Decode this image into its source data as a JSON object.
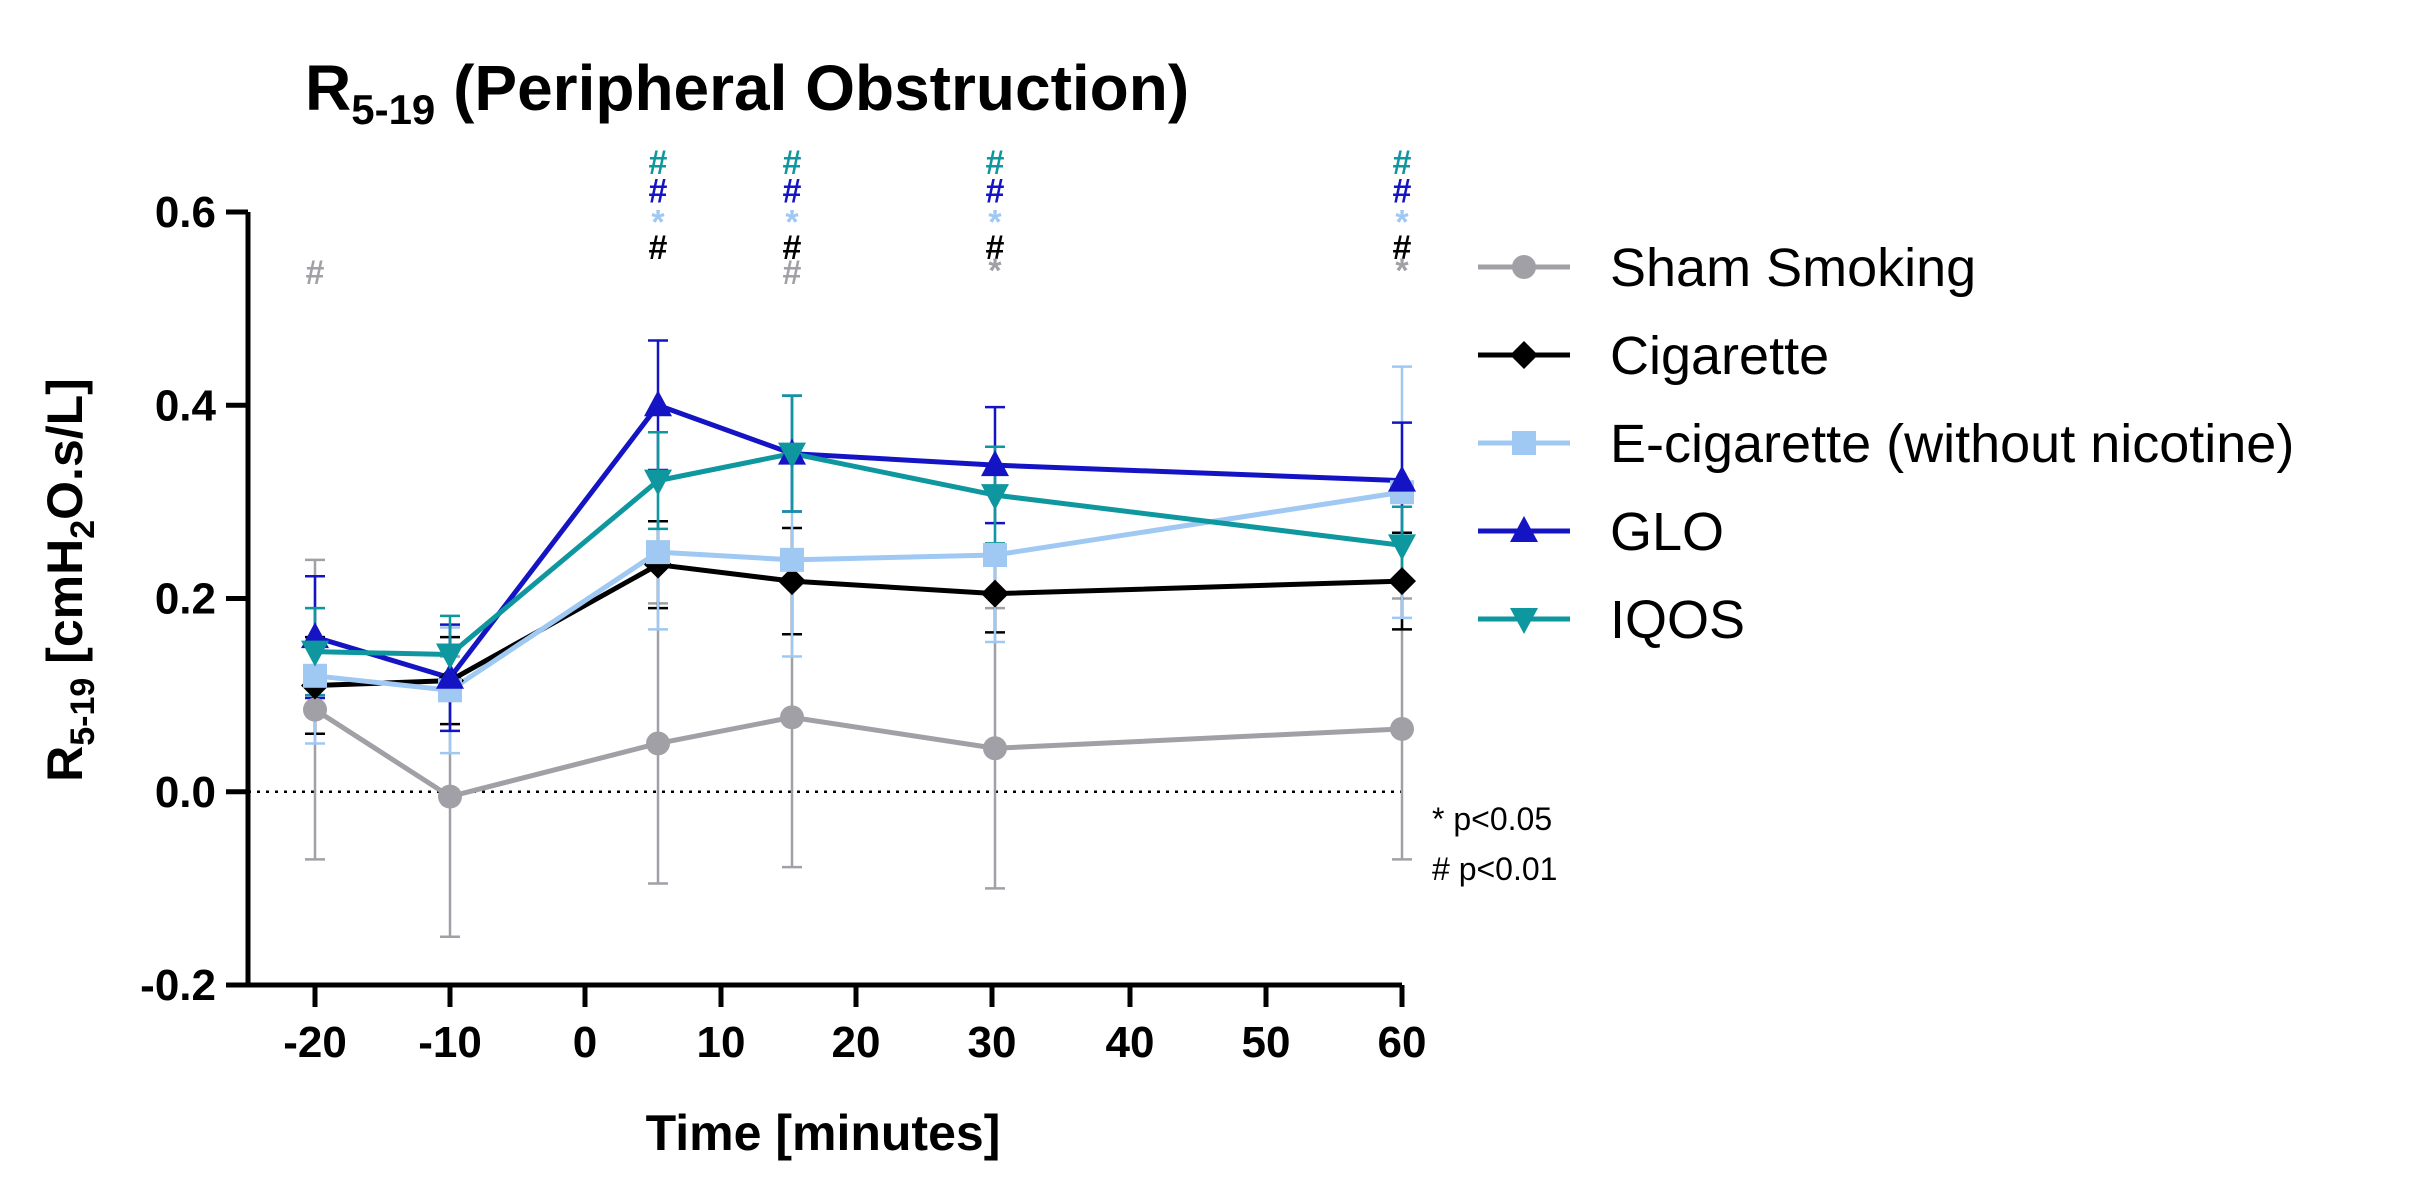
{
  "chart_data": {
    "type": "line",
    "title": "R5-19 (Peripheral Obstruction)",
    "title_main": "R",
    "title_sub": "5-19",
    "title_rest": " (Peripheral Obstruction)",
    "xlabel": "Time [minutes]",
    "ylabel": "R5-19 [cmH2O.s/L]",
    "ylabel_r": "R",
    "ylabel_sub": "5-19",
    "ylabel_unit_a": " [cmH",
    "ylabel_unit_sub": "2",
    "ylabel_unit_b": "O.s/L]",
    "x_ticks": [
      "-20",
      "-10",
      "0",
      "10",
      "20",
      "30",
      "40",
      "50",
      "60"
    ],
    "x": [
      -20,
      -10,
      5,
      15,
      30,
      60
    ],
    "y_ticks": [
      "-0.2",
      "0.0",
      "0.2",
      "0.4",
      "0.6"
    ],
    "ylim": [
      -0.2,
      0.6
    ],
    "zero_line": "dotted",
    "legend_position": "right",
    "series": [
      {
        "name": "Sham Smoking",
        "color": "#a0a0a6",
        "marker": "circle",
        "values": [
          0.085,
          -0.005,
          0.05,
          0.077,
          0.045,
          0.065
        ],
        "errors": [
          0.155,
          0.145,
          0.145,
          0.155,
          0.145,
          0.135
        ]
      },
      {
        "name": "Cigarette",
        "color": "#000000",
        "marker": "diamond",
        "values": [
          0.11,
          0.115,
          0.235,
          0.218,
          0.205,
          0.218
        ],
        "errors": [
          0.05,
          0.045,
          0.045,
          0.055,
          0.04,
          0.05
        ]
      },
      {
        "name": "E-cigarette (without nicotine)",
        "color": "#9fc8f2",
        "marker": "square",
        "values": [
          0.12,
          0.105,
          0.248,
          0.24,
          0.245,
          0.31
        ],
        "errors": [
          0.07,
          0.065,
          0.08,
          0.1,
          0.09,
          0.13
        ]
      },
      {
        "name": "GLO",
        "color": "#1414c4",
        "marker": "triangle-up",
        "values": [
          0.16,
          0.118,
          0.4,
          0.35,
          0.338,
          0.322
        ],
        "errors": [
          0.063,
          0.055,
          0.067,
          0.06,
          0.06,
          0.06
        ]
      },
      {
        "name": "IQOS",
        "color": "#0e979e",
        "marker": "triangle-down",
        "values": [
          0.145,
          0.142,
          0.322,
          0.35,
          0.307,
          0.255
        ],
        "errors": [
          0.045,
          0.04,
          0.05,
          0.06,
          0.05,
          0.04
        ]
      }
    ],
    "significance": [
      {
        "x": -20,
        "marks": [
          {
            "text": "#",
            "color": "#a0a0a6",
            "y": 0.538
          }
        ]
      },
      {
        "x": 5,
        "marks": [
          {
            "text": "#",
            "color": "#0e979e",
            "y": 0.652
          },
          {
            "text": "#",
            "color": "#1414c4",
            "y": 0.622
          },
          {
            "text": "*",
            "color": "#9fc8f2",
            "y": 0.59
          },
          {
            "text": "#",
            "color": "#000000",
            "y": 0.564
          }
        ]
      },
      {
        "x": 15,
        "marks": [
          {
            "text": "#",
            "color": "#0e979e",
            "y": 0.652
          },
          {
            "text": "#",
            "color": "#1414c4",
            "y": 0.622
          },
          {
            "text": "*",
            "color": "#9fc8f2",
            "y": 0.59
          },
          {
            "text": "#",
            "color": "#000000",
            "y": 0.564
          },
          {
            "text": "#",
            "color": "#a0a0a6",
            "y": 0.538
          }
        ]
      },
      {
        "x": 30,
        "marks": [
          {
            "text": "#",
            "color": "#0e979e",
            "y": 0.652
          },
          {
            "text": "#",
            "color": "#1414c4",
            "y": 0.622
          },
          {
            "text": "*",
            "color": "#9fc8f2",
            "y": 0.59
          },
          {
            "text": "#",
            "color": "#000000",
            "y": 0.564
          },
          {
            "text": "*",
            "color": "#a0a0a6",
            "y": 0.54
          }
        ]
      },
      {
        "x": 60,
        "marks": [
          {
            "text": "#",
            "color": "#0e979e",
            "y": 0.652
          },
          {
            "text": "#",
            "color": "#1414c4",
            "y": 0.622
          },
          {
            "text": "*",
            "color": "#9fc8f2",
            "y": 0.59
          },
          {
            "text": "#",
            "color": "#000000",
            "y": 0.564
          },
          {
            "text": "*",
            "color": "#a0a0a6",
            "y": 0.54
          }
        ]
      }
    ],
    "notes": [
      "* p<0.05",
      "# p<0.01"
    ]
  }
}
